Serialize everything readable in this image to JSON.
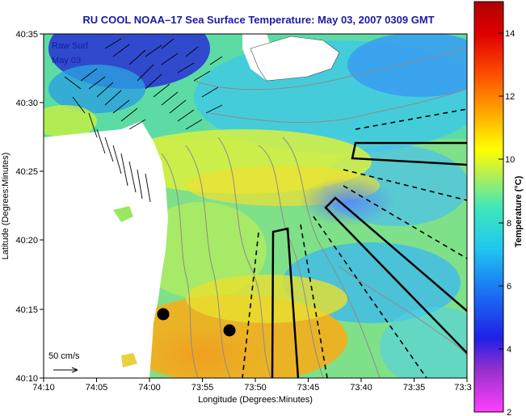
{
  "title": "RU COOL  NOAA–17  Sea Surface Temperature:  May 03, 2007 0309 GMT",
  "overlay_lines": [
    "Raw Surf",
    "May 03"
  ],
  "x_axis": {
    "label": "Longitude (Degrees:Minutes)",
    "ticks": [
      "74:10",
      "74:05",
      "74:00",
      "73:55",
      "73:50",
      "73:45",
      "73:40",
      "73:35",
      "73:3"
    ]
  },
  "y_axis": {
    "label": "Latitude (Degrees:Minutes)",
    "ticks": [
      "40:35",
      "40:30",
      "40:25",
      "40:20",
      "40:15",
      "40:10"
    ]
  },
  "colorbar": {
    "label": "Temperature (°C)",
    "ticks": [
      "14",
      "12",
      "10",
      "8",
      "6",
      "4",
      "2"
    ],
    "min": 2,
    "max": 15
  },
  "scale_label": "50 cm/s",
  "colors": {
    "title": "#1a1aa8",
    "land": "#ffffff",
    "contours": "#8c8c8c"
  }
}
